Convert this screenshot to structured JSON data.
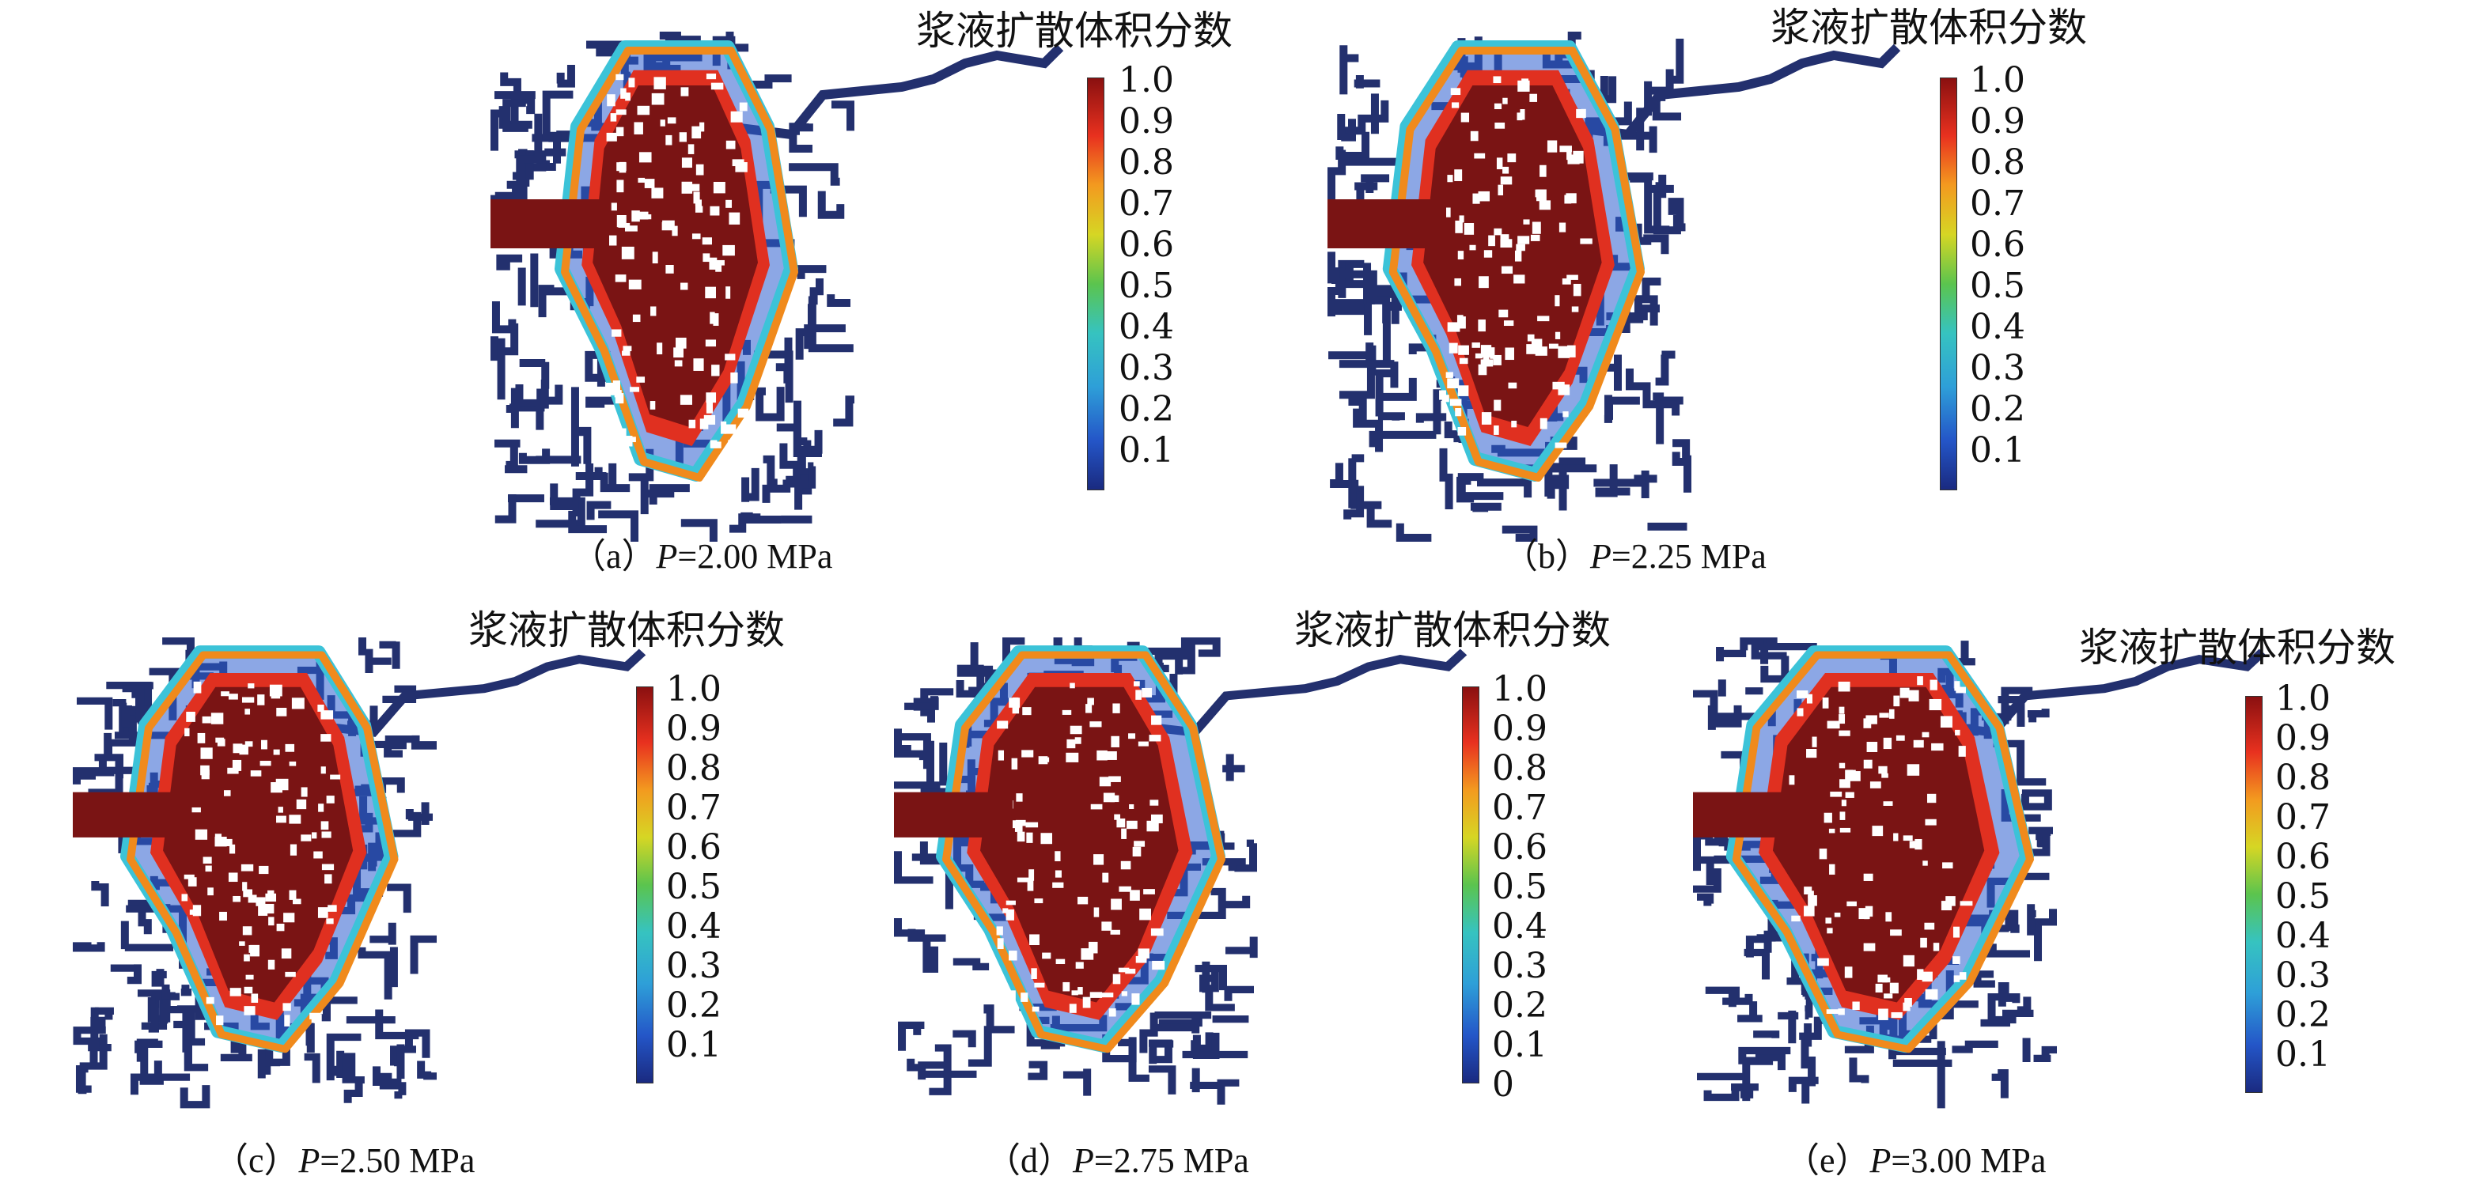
{
  "colorbar": {
    "title": "浆液扩散体积分数",
    "ticks_main": [
      "1.0",
      "0.9",
      "0.8",
      "0.7",
      "0.6",
      "0.5",
      "0.4",
      "0.3",
      "0.2",
      "0.1"
    ],
    "ticks_with_zero": [
      "1.0",
      "0.9",
      "0.8",
      "0.7",
      "0.6",
      "0.5",
      "0.4",
      "0.3",
      "0.2",
      "0.1",
      "0"
    ]
  },
  "panels": [
    {
      "label": "（a）",
      "pvar": "P",
      "value": "=2.00 MPa"
    },
    {
      "label": "（b）",
      "pvar": "P",
      "value": "=2.25 MPa"
    },
    {
      "label": "（c）",
      "pvar": "P",
      "value": "=2.50 MPa"
    },
    {
      "label": "（d）",
      "pvar": "P",
      "value": "=2.75 MPa"
    },
    {
      "label": "（e）",
      "pvar": "P",
      "value": "=3.00 MPa"
    }
  ],
  "colors": {
    "navy": "#23306e",
    "dark_red": "#7a1414",
    "blue": "#2e5fd0",
    "cyan": "#3cc3d8",
    "orange": "#f08a1c",
    "red": "#e03020"
  }
}
